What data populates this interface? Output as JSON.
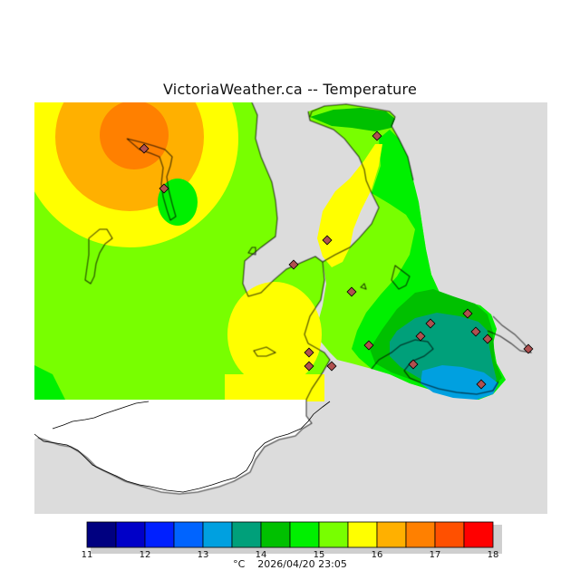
{
  "title": "VictoriaWeather.ca -- Temperature",
  "footer": {
    "unit": "°C",
    "timestamp": "2026/04/20 23:05"
  },
  "colorbar": {
    "ticks": [
      "11",
      "12",
      "13",
      "14",
      "15",
      "16",
      "17",
      "18"
    ],
    "colors": [
      "#000080",
      "#0000c8",
      "#0020ff",
      "#0064ff",
      "#00a0e0",
      "#00a07a",
      "#00c000",
      "#00f000",
      "#78ff00",
      "#ffff00",
      "#ffb000",
      "#ff8000",
      "#ff5000",
      "#ff0000"
    ]
  },
  "colors": {
    "background": "#ffffff",
    "no_data": "#dcdcdc",
    "land_mask": "#ffffff",
    "station_fill": "#b05050"
  },
  "stations": [
    {
      "name": "",
      "temp": 17.8
    },
    {
      "name": "",
      "temp": 15.5
    },
    {
      "name": "",
      "temp": 15.0
    },
    {
      "name": "",
      "temp": 16.0
    },
    {
      "name": "",
      "temp": 15.5
    },
    {
      "name": "",
      "temp": 15.5
    },
    {
      "name": "",
      "temp": 15.5
    },
    {
      "name": "",
      "temp": 16.0
    },
    {
      "name": "",
      "temp": 16.0
    },
    {
      "name": "",
      "temp": 15.5
    },
    {
      "name": "",
      "temp": 14.5
    },
    {
      "name": "",
      "temp": 14.0
    },
    {
      "name": "",
      "temp": 14.5
    },
    {
      "name": "",
      "temp": 14.0
    },
    {
      "name": "",
      "temp": 14.0
    },
    {
      "name": "",
      "temp": 13.5
    },
    {
      "name": "",
      "temp": 13.5
    }
  ]
}
